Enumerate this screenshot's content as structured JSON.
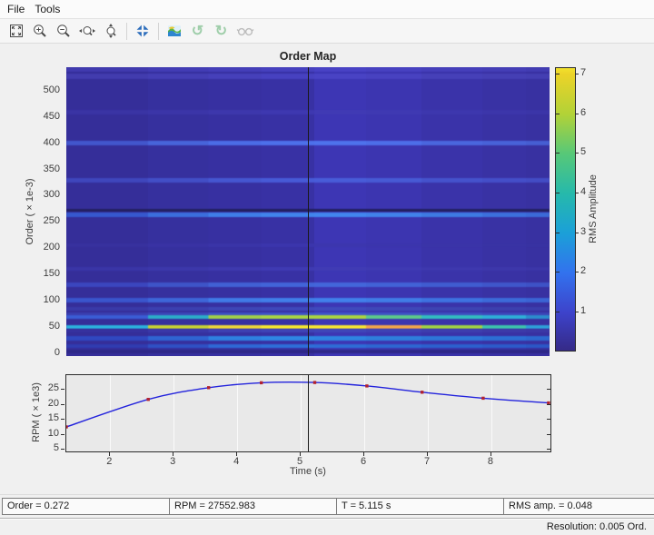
{
  "window": {
    "menu": [
      "File",
      "Tools"
    ]
  },
  "toolbar": {
    "icons": [
      "fit-to-window",
      "zoom-in",
      "zoom-out",
      "zoom-x",
      "zoom-y",
      "restore-view",
      "colormap",
      "rotate-ccw",
      "rotate-cw",
      "overlay"
    ]
  },
  "status": {
    "cells": [
      "Order = 0.272",
      "RPM = 27552.983",
      "T = 5.115 s",
      "RMS amp. = 0.048"
    ],
    "resolution": "Resolution: 0.005 Ord."
  },
  "chart_data": [
    {
      "type": "heatmap",
      "title": "Order Map",
      "ylabel": "Order  ( × 1e-3)",
      "colorbar_label": "RMS Amplitude",
      "xlim": [
        1.31,
        8.93
      ],
      "ylim": [
        -6,
        545
      ],
      "order_ticks": [
        0,
        50,
        100,
        150,
        200,
        250,
        300,
        350,
        400,
        450,
        500
      ],
      "colorbar_ticks": [
        1,
        2,
        3,
        4,
        5,
        6,
        7
      ],
      "colorbar_range": [
        0.04,
        7.16
      ],
      "colorbar_gradient": [
        [
          0,
          "#352a87"
        ],
        [
          1,
          "#3d43cb"
        ],
        [
          2,
          "#3272ee"
        ],
        [
          3,
          "#1ba0d8"
        ],
        [
          4,
          "#26b9ab"
        ],
        [
          5,
          "#57c878"
        ],
        [
          6,
          "#b2d237"
        ],
        [
          7,
          "#ecd328"
        ],
        [
          7.16,
          "#f2e22c"
        ]
      ],
      "cursor_time": 5.115,
      "time_bin_edges": [
        1.31,
        2.6,
        3.55,
        4.38,
        5.22,
        6.04,
        6.91,
        7.87,
        8.56,
        8.93
      ],
      "bg_bins": [
        "#352e99",
        "#36309e",
        "#3730a1",
        "#3831a4",
        "#3d36b4",
        "#3c35b0",
        "#3a33a9",
        "#3932a4",
        "#3831a1"
      ],
      "stripes": [
        {
          "order": 540,
          "h": 5,
          "colors": [
            "#403aae",
            "#423cb4",
            "#443eb8",
            "#4640be",
            "#4842c4",
            "#4741c0",
            "#453fba",
            "#443eb6",
            "#423cb2"
          ]
        },
        {
          "order": 528,
          "h": 6,
          "colors": [
            "#423cae",
            "#443eb4",
            "#4640ba",
            "#4741c0",
            "#4943c4",
            "#4842c0",
            "#4640b8",
            "#453fb4",
            "#443eb2"
          ]
        },
        {
          "order": 460,
          "h": 5,
          "colors": [
            "#3a34a4",
            "#3b35a8",
            "#3d37ac",
            "#3e38b0",
            "#403ab4",
            "#3f39b2",
            "#3d37ae",
            "#3c36aa",
            "#3b35a8"
          ]
        },
        {
          "order": 400,
          "h": 5,
          "colors": [
            "#4256cc",
            "#4764da",
            "#4b6ce6",
            "#4d70ea",
            "#4e72ec",
            "#4d6ee8",
            "#4a66de",
            "#4862d8",
            "#465ed2"
          ]
        },
        {
          "order": 330,
          "h": 5,
          "colors": [
            "#3f46bc",
            "#424ec6",
            "#4556d0",
            "#475ad6",
            "#485cd8",
            "#475ad4",
            "#4552cc",
            "#444ec8",
            "#434cc4"
          ]
        },
        {
          "order": 272,
          "h": 3,
          "colors": [
            "#232060",
            "#232060",
            "#221f5e",
            "#221f5e",
            "#221f5e",
            "#221f5e",
            "#232060",
            "#232060",
            "#232060"
          ]
        },
        {
          "order": 264,
          "h": 5,
          "colors": [
            "#3658ce",
            "#3b6edc",
            "#3f7ee8",
            "#4184ec",
            "#4286ee",
            "#4182ea",
            "#3e7ae2",
            "#3c70dc",
            "#3b6ad8"
          ]
        },
        {
          "order": 205,
          "h": 4,
          "colors": [
            "#38319e",
            "#3932a4",
            "#3a34a8",
            "#3b35ac",
            "#3c36ae",
            "#3b35ac",
            "#3a34a8",
            "#3933a4",
            "#3832a2"
          ]
        },
        {
          "order": 160,
          "h": 4,
          "colors": [
            "#3a35a6",
            "#3c37aa",
            "#3e39ae",
            "#3f3ab2",
            "#403bb4",
            "#3f3ab2",
            "#3e38ae",
            "#3d37aa",
            "#3c36a8"
          ]
        },
        {
          "order": 130,
          "h": 5,
          "colors": [
            "#3b46be",
            "#3e54c8",
            "#4160d4",
            "#4264d8",
            "#4366da",
            "#4262d6",
            "#405cd0",
            "#3f56ca",
            "#3e52c6"
          ]
        },
        {
          "order": 100,
          "h": 5,
          "colors": [
            "#3a55cc",
            "#3d66d8",
            "#407ae6",
            "#417ee8",
            "#4180ea",
            "#407ce6",
            "#3e72e0",
            "#3c6ad8",
            "#3b64d4"
          ]
        },
        {
          "order": 85,
          "h": 4,
          "colors": [
            "#393aa8",
            "#3b40b0",
            "#3d46b6",
            "#3e48ba",
            "#3f4abc",
            "#3e48b8",
            "#3d44b2",
            "#3c40ae",
            "#3b3eac"
          ]
        },
        {
          "order": 73,
          "h": 4,
          "colors": [
            "#3a3eae",
            "#3c46b8",
            "#3e50c2",
            "#3f52c6",
            "#4054c8",
            "#3f52c4",
            "#3e4ec0",
            "#3d48ba",
            "#3c44b6"
          ]
        },
        {
          "order": 68,
          "h": 4,
          "colors": [
            "#3a5cd4",
            "#2cacc8",
            "#a0d04a",
            "#a8d643",
            "#aad541",
            "#5cc88a",
            "#32bcc0",
            "#2eaed6",
            "#2c8ccc"
          ]
        },
        {
          "order": 50,
          "h": 4,
          "colors": [
            "#2cb0dc",
            "#c6d034",
            "#ecd63a",
            "#f6e62e",
            "#f6e432",
            "#f0a44c",
            "#a0d244",
            "#3cc2ac",
            "#2e9ed8"
          ]
        },
        {
          "order": 42,
          "h": 4,
          "colors": [
            "#36319e",
            "#3a38a8",
            "#3e40b2",
            "#3f44b6",
            "#3f46b8",
            "#3e42b4",
            "#3d3eae",
            "#3c3aa8",
            "#3b38a6"
          ]
        },
        {
          "order": 28,
          "h": 5,
          "colors": [
            "#3048c0",
            "#2f64d2",
            "#2e80e0",
            "#2e86e4",
            "#2e84e2",
            "#2e7edc",
            "#2d76d8",
            "#2c6ed4",
            "#2c68d0"
          ]
        },
        {
          "order": 14,
          "h": 4,
          "colors": [
            "#303cb0",
            "#2f50c4",
            "#2e68d6",
            "#2e6ed8",
            "#2e6cd6",
            "#2d66d2",
            "#2c60ce",
            "#2c5aca",
            "#2b56c6"
          ]
        },
        {
          "order": 2,
          "h": 4,
          "colors": [
            "#2e2888",
            "#2e2888",
            "#2e2888",
            "#2e2888",
            "#2e2888",
            "#2e2888",
            "#2e2888",
            "#2e2888",
            "#2e2888"
          ]
        }
      ]
    },
    {
      "type": "line",
      "xlabel": "Time (s)",
      "ylabel": "RPM  ( × 1e3)",
      "xlim": [
        1.31,
        8.93
      ],
      "ylim": [
        4.4,
        29.9
      ],
      "x_ticks": [
        2,
        3,
        4,
        5,
        6,
        7,
        8
      ],
      "y_ticks": [
        5,
        10,
        15,
        20,
        25
      ],
      "points": [
        [
          1.31,
          12.6
        ],
        [
          2.6,
          21.8
        ],
        [
          3.55,
          25.7
        ],
        [
          4.38,
          27.35
        ],
        [
          5.22,
          27.45
        ],
        [
          6.04,
          26.3
        ],
        [
          6.91,
          24.2
        ],
        [
          7.87,
          22.2
        ],
        [
          8.9,
          20.6
        ]
      ],
      "line_color": "#2323dc",
      "marker_color": "#b22230",
      "cursor_time": 5.115
    }
  ]
}
